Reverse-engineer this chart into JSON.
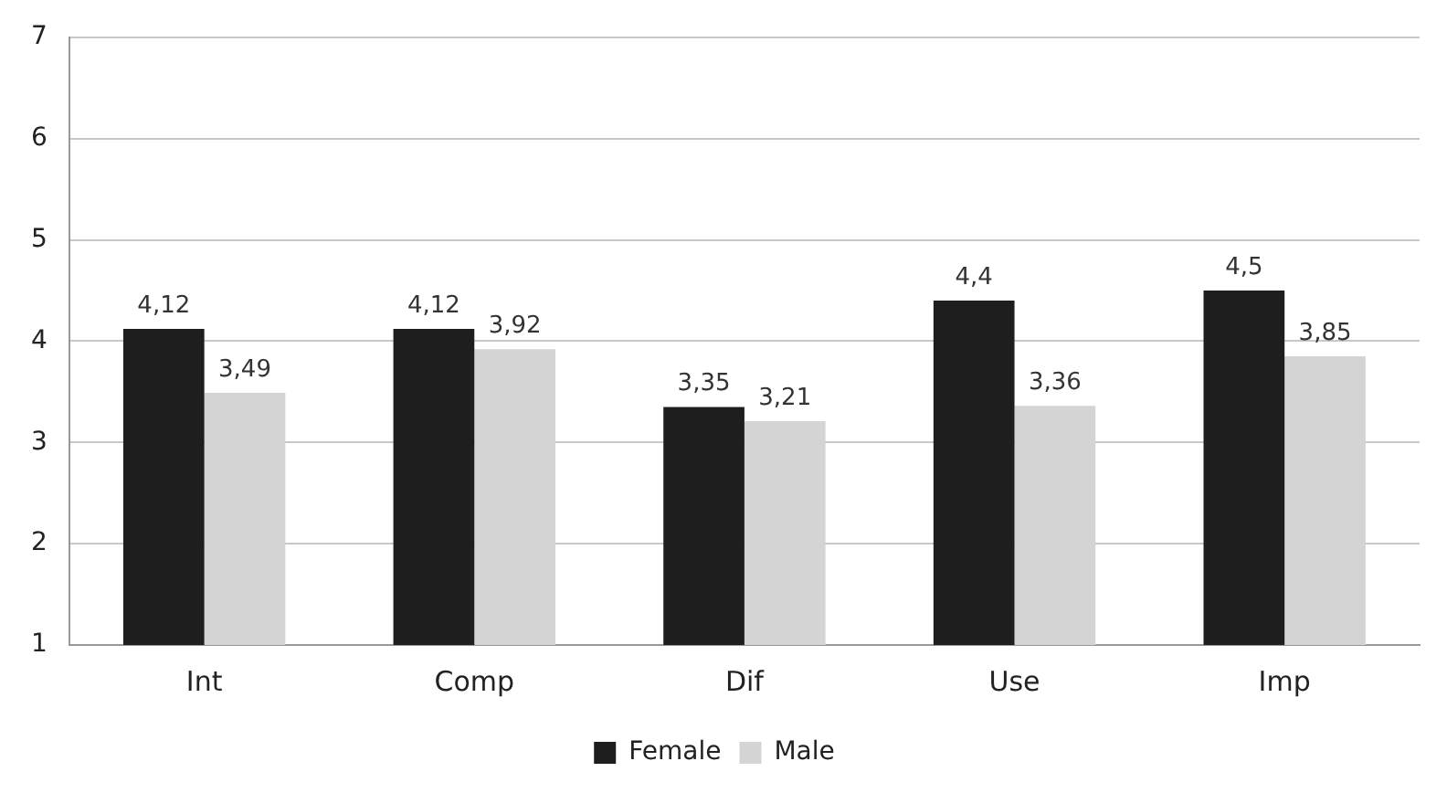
{
  "chart_data": {
    "type": "bar",
    "categories": [
      "Int",
      "Comp",
      "Dif",
      "Use",
      "Imp"
    ],
    "series": [
      {
        "name": "Female",
        "color": "#1e1e1e",
        "values": [
          4.12,
          4.12,
          3.35,
          4.4,
          4.5
        ],
        "value_labels": [
          "4,12",
          "4,12",
          "3,35",
          "4,4",
          "4,5"
        ]
      },
      {
        "name": "Male",
        "color": "#d4d4d4",
        "values": [
          3.49,
          3.92,
          3.21,
          3.36,
          3.85
        ],
        "value_labels": [
          "3,49",
          "3,92",
          "3,21",
          "3,36",
          "3,85"
        ]
      }
    ],
    "ylim": [
      1,
      7
    ],
    "yticks": [
      1,
      2,
      3,
      4,
      5,
      6,
      7
    ],
    "grid": "y",
    "legend": "bottom"
  }
}
